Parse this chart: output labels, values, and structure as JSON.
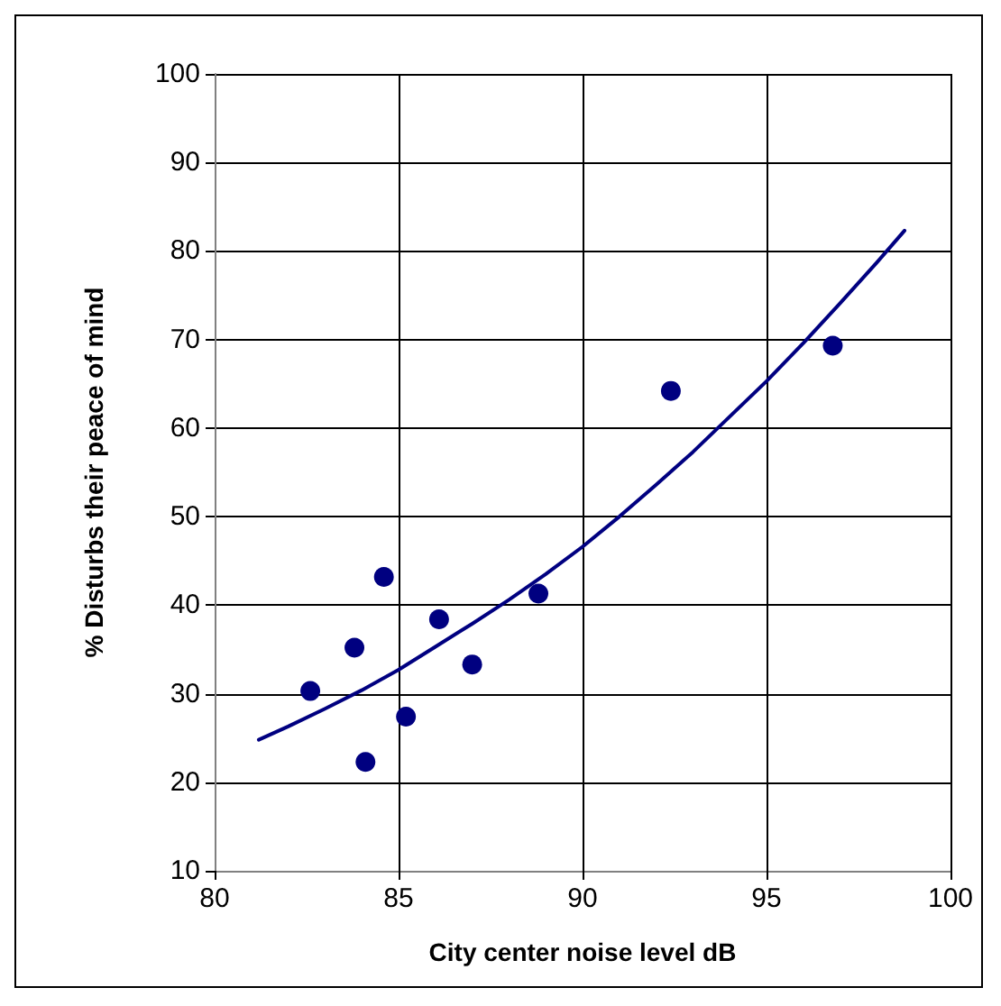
{
  "chart_data": {
    "type": "scatter",
    "xlabel": "City center noise level dB",
    "ylabel": "% Disturbs their peace of mind",
    "xlim": [
      80,
      100
    ],
    "xticks": [
      80,
      85,
      90,
      95,
      100
    ],
    "ylim": [
      10,
      100
    ],
    "yticks": [
      10,
      20,
      30,
      40,
      50,
      60,
      70,
      80,
      90,
      100
    ],
    "grid": true,
    "series": [
      {
        "color": "#000080",
        "marker": "circle",
        "x": [
          82.6,
          83.8,
          84.1,
          84.6,
          85.2,
          86.1,
          87.0,
          88.8,
          92.4,
          96.8
        ],
        "values": [
          30.3,
          35.2,
          22.3,
          43.2,
          27.4,
          38.4,
          33.3,
          41.3,
          64.2,
          69.3
        ]
      },
      {
        "type": "line",
        "color": "#000080",
        "marker": "none",
        "line_style": "solid",
        "x": [
          81.2,
          82,
          83,
          84,
          85,
          86,
          87,
          88,
          89,
          90,
          91,
          92,
          93,
          94,
          95,
          96,
          97,
          98,
          98.75
        ],
        "values": [
          24.8,
          26.3,
          28.3,
          30.4,
          32.7,
          35.3,
          37.9,
          40.6,
          43.5,
          46.6,
          50,
          53.6,
          57.3,
          61.3,
          65.3,
          69.6,
          74.1,
          78.7,
          82.3
        ]
      }
    ]
  }
}
